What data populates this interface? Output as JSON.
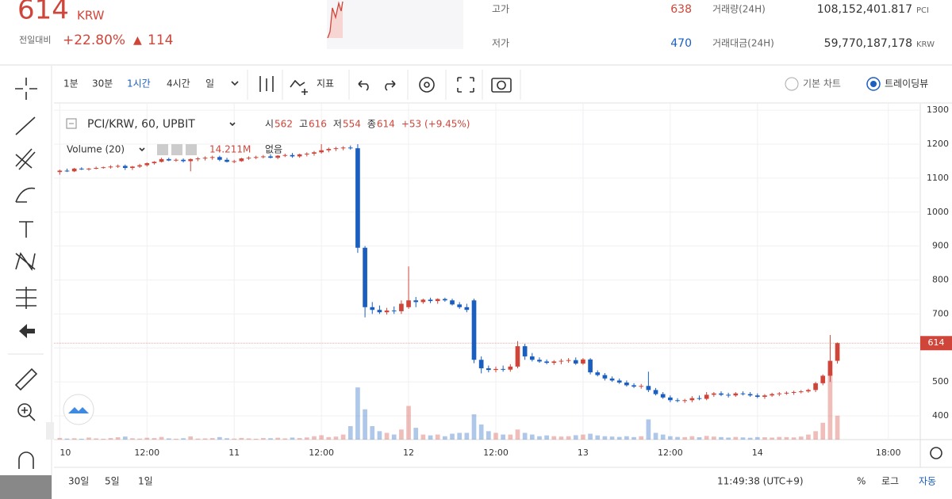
{
  "header": {
    "price": "614",
    "currency": "KRW",
    "change_caption": "전일대비",
    "change_rate": "+22.80%",
    "change_arrow": "▲",
    "change_amount": "114",
    "high_caption": "고가",
    "high": "638",
    "low_caption": "저가",
    "low": "470",
    "volume_caption": "거래량(24H)",
    "volume": "108,152,401.817",
    "volume_unit": "PCI",
    "turnover_caption": "거래대금(24H)",
    "turnover": "59,770,187,178",
    "turnover_unit": "KRW"
  },
  "toolbar": {
    "intervals": [
      "1분",
      "30분",
      "1시간",
      "4시간",
      "일"
    ],
    "indicators": "지표",
    "basic_chart": "기본 차트",
    "tradingview": "트레이딩뷰"
  },
  "footer": {
    "ranges": [
      "30일",
      "5일",
      "1일"
    ],
    "clock": "11:49:38 (UTC+9)",
    "percent": "%",
    "log": "로그",
    "auto": "자동"
  },
  "chart_data": {
    "type": "candlestick",
    "symbol": "PCI/KRW, 60, UPBIT",
    "ohlc_labels": [
      "시",
      "고",
      "저",
      "종"
    ],
    "change": "+53 (+9.45%)",
    "volume_title": "Volume (20)",
    "volume_none": "없음",
    "up_color": "#d0453a",
    "down_color": "#1a5fc0",
    "last_price": 614,
    "xlim": [
      -0.8,
      118.4
    ],
    "ylim": [
      330,
      1319
    ],
    "yticks": [
      400,
      500,
      600,
      700,
      800,
      900,
      1000,
      1100,
      1200,
      1300
    ],
    "xticks": [
      {
        "value": 0,
        "label": "10"
      },
      {
        "value": 12,
        "label": "12:00"
      },
      {
        "value": 24,
        "label": "11"
      },
      {
        "value": 36,
        "label": "12:00"
      },
      {
        "value": 48,
        "label": "12"
      },
      {
        "value": 60,
        "label": "12:00"
      },
      {
        "value": 72,
        "label": "13"
      },
      {
        "value": 84,
        "label": "12:00"
      },
      {
        "value": 96,
        "label": "14"
      },
      {
        "value": 114,
        "label": "18:00"
      }
    ],
    "x": [
      0,
      1,
      2,
      3,
      4,
      5,
      6,
      7,
      8,
      9,
      10,
      11,
      12,
      13,
      14,
      15,
      16,
      17,
      18,
      19,
      20,
      21,
      22,
      23,
      24,
      25,
      26,
      27,
      28,
      29,
      30,
      31,
      32,
      33,
      34,
      35,
      36,
      37,
      38,
      39,
      40,
      41,
      42,
      43,
      44,
      45,
      46,
      47,
      48,
      49,
      50,
      51,
      52,
      53,
      54,
      55,
      56,
      57,
      58,
      59,
      60,
      61,
      62,
      63,
      64,
      65,
      66,
      67,
      68,
      69,
      70,
      71,
      72,
      73,
      74,
      75,
      76,
      77,
      78,
      79,
      80,
      81,
      82,
      83,
      84,
      85,
      86,
      87,
      88,
      89,
      90,
      91,
      92,
      93,
      94,
      95,
      96,
      97,
      98,
      99,
      100,
      101,
      102,
      103,
      104,
      105,
      106,
      107
    ],
    "ohlc": [
      [
        1118,
        1125,
        1110,
        1122
      ],
      [
        1122,
        1128,
        1118,
        1120
      ],
      [
        1120,
        1130,
        1118,
        1128
      ],
      [
        1128,
        1132,
        1124,
        1126
      ],
      [
        1126,
        1130,
        1122,
        1128
      ],
      [
        1128,
        1134,
        1126,
        1130
      ],
      [
        1130,
        1134,
        1128,
        1132
      ],
      [
        1132,
        1138,
        1128,
        1134
      ],
      [
        1134,
        1140,
        1130,
        1136
      ],
      [
        1136,
        1140,
        1124,
        1130
      ],
      [
        1130,
        1136,
        1124,
        1134
      ],
      [
        1134,
        1142,
        1130,
        1138
      ],
      [
        1138,
        1146,
        1134,
        1144
      ],
      [
        1144,
        1150,
        1140,
        1148
      ],
      [
        1148,
        1160,
        1146,
        1156
      ],
      [
        1156,
        1160,
        1150,
        1152
      ],
      [
        1152,
        1158,
        1148,
        1154
      ],
      [
        1154,
        1158,
        1146,
        1150
      ],
      [
        1150,
        1158,
        1120,
        1156
      ],
      [
        1156,
        1162,
        1150,
        1158
      ],
      [
        1158,
        1164,
        1152,
        1160
      ],
      [
        1160,
        1166,
        1154,
        1162
      ],
      [
        1162,
        1166,
        1150,
        1154
      ],
      [
        1154,
        1160,
        1146,
        1148
      ],
      [
        1148,
        1154,
        1144,
        1150
      ],
      [
        1150,
        1160,
        1148,
        1158
      ],
      [
        1158,
        1164,
        1154,
        1160
      ],
      [
        1160,
        1166,
        1156,
        1162
      ],
      [
        1162,
        1168,
        1158,
        1164
      ],
      [
        1164,
        1170,
        1158,
        1160
      ],
      [
        1160,
        1168,
        1156,
        1166
      ],
      [
        1166,
        1172,
        1162,
        1168
      ],
      [
        1168,
        1174,
        1160,
        1164
      ],
      [
        1164,
        1172,
        1160,
        1170
      ],
      [
        1170,
        1176,
        1164,
        1172
      ],
      [
        1172,
        1180,
        1166,
        1176
      ],
      [
        1176,
        1200,
        1172,
        1182
      ],
      [
        1182,
        1190,
        1176,
        1186
      ],
      [
        1186,
        1192,
        1180,
        1188
      ],
      [
        1188,
        1194,
        1182,
        1190
      ],
      [
        1190,
        1196,
        1184,
        1188
      ],
      [
        1188,
        1200,
        880,
        895
      ],
      [
        895,
        900,
        690,
        720
      ],
      [
        720,
        735,
        700,
        712
      ],
      [
        712,
        725,
        700,
        705
      ],
      [
        705,
        718,
        698,
        710
      ],
      [
        710,
        722,
        700,
        708
      ],
      [
        708,
        740,
        700,
        730
      ],
      [
        720,
        840,
        715,
        740
      ],
      [
        740,
        750,
        720,
        735
      ],
      [
        735,
        745,
        730,
        742
      ],
      [
        742,
        748,
        732,
        738
      ],
      [
        738,
        746,
        730,
        744
      ],
      [
        744,
        748,
        736,
        740
      ],
      [
        740,
        745,
        725,
        728
      ],
      [
        728,
        735,
        715,
        720
      ],
      [
        720,
        730,
        705,
        712
      ],
      [
        740,
        745,
        555,
        565
      ],
      [
        565,
        575,
        525,
        540
      ],
      [
        540,
        548,
        528,
        535
      ],
      [
        535,
        545,
        528,
        538
      ],
      [
        538,
        548,
        530,
        536
      ],
      [
        536,
        552,
        530,
        545
      ],
      [
        545,
        620,
        540,
        605
      ],
      [
        605,
        612,
        565,
        575
      ],
      [
        575,
        585,
        560,
        565
      ],
      [
        565,
        572,
        556,
        560
      ],
      [
        560,
        566,
        552,
        556
      ],
      [
        556,
        564,
        550,
        560
      ],
      [
        560,
        568,
        552,
        562
      ],
      [
        562,
        570,
        556,
        564
      ],
      [
        564,
        572,
        550,
        554
      ],
      [
        554,
        570,
        550,
        566
      ],
      [
        566,
        570,
        522,
        528
      ],
      [
        528,
        534,
        516,
        520
      ],
      [
        520,
        526,
        504,
        510
      ],
      [
        510,
        516,
        500,
        504
      ],
      [
        504,
        510,
        494,
        498
      ],
      [
        498,
        504,
        486,
        490
      ],
      [
        490,
        496,
        482,
        486
      ],
      [
        486,
        494,
        480,
        488
      ],
      [
        488,
        530,
        470,
        476
      ],
      [
        476,
        482,
        460,
        464
      ],
      [
        464,
        470,
        450,
        454
      ],
      [
        454,
        460,
        440,
        446
      ],
      [
        446,
        452,
        440,
        444
      ],
      [
        444,
        450,
        438,
        446
      ],
      [
        446,
        458,
        440,
        452
      ],
      [
        452,
        460,
        446,
        450
      ],
      [
        450,
        470,
        446,
        462
      ],
      [
        462,
        470,
        456,
        466
      ],
      [
        466,
        472,
        458,
        462
      ],
      [
        462,
        468,
        454,
        460
      ],
      [
        460,
        470,
        456,
        466
      ],
      [
        466,
        472,
        460,
        464
      ],
      [
        464,
        470,
        456,
        460
      ],
      [
        460,
        466,
        452,
        456
      ],
      [
        456,
        464,
        450,
        460
      ],
      [
        460,
        468,
        456,
        464
      ],
      [
        464,
        470,
        458,
        466
      ],
      [
        466,
        472,
        462,
        468
      ],
      [
        468,
        474,
        462,
        470
      ],
      [
        470,
        476,
        466,
        472
      ],
      [
        472,
        480,
        468,
        476
      ],
      [
        476,
        500,
        470,
        496
      ],
      [
        496,
        522,
        490,
        518
      ],
      [
        518,
        638,
        500,
        562
      ],
      [
        562,
        616,
        554,
        614
      ]
    ],
    "volumes": [
      1,
      0.6,
      0.8,
      0.5,
      1.2,
      0.7,
      0.5,
      0.9,
      1.4,
      1.8,
      0.8,
      0.6,
      1.1,
      0.9,
      1.6,
      0.7,
      0.5,
      0.8,
      1.9,
      0.6,
      0.7,
      0.9,
      1.5,
      0.8,
      0.6,
      1,
      0.7,
      0.5,
      0.9,
      0.8,
      1.1,
      0.7,
      1.2,
      0.9,
      1.3,
      2,
      2.6,
      1.5,
      1.8,
      3,
      8,
      31,
      18,
      8,
      5,
      4,
      3,
      6,
      20,
      7,
      3,
      2.5,
      3,
      2,
      3.5,
      4,
      4,
      15,
      9,
      5,
      4,
      3,
      3,
      6,
      4,
      3,
      2,
      2.5,
      2,
      1.8,
      2,
      2.6,
      3,
      3.5,
      2.5,
      2,
      1.8,
      1.6,
      2,
      1.5,
      2,
      12,
      4,
      3,
      2,
      1.6,
      1.5,
      2,
      1.4,
      2.2,
      1.8,
      1.5,
      1.2,
      1.6,
      1.3,
      1.1,
      1.5,
      1.4,
      1.2,
      1.6,
      1.5,
      1.3,
      1.8,
      3,
      5,
      10,
      40,
      14.211
    ],
    "volume_value_label": "14.211M"
  }
}
